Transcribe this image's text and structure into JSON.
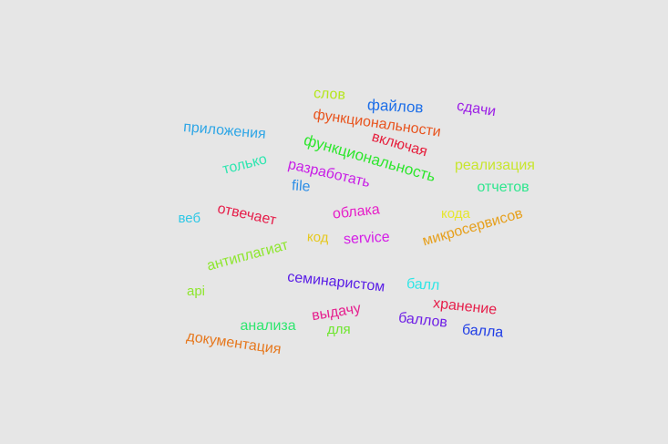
{
  "words": [
    {
      "text": "слов",
      "color": "#b5e61d"
    },
    {
      "text": "файлов",
      "color": "#1e6fe8"
    },
    {
      "text": "сдачи",
      "color": "#9b1de6"
    },
    {
      "text": "функциональности",
      "color": "#e8541e"
    },
    {
      "text": "приложения",
      "color": "#2ea6e6"
    },
    {
      "text": "функциональность",
      "color": "#2ee62e"
    },
    {
      "text": "включая",
      "color": "#e61e3c"
    },
    {
      "text": "только",
      "color": "#2ee6b0"
    },
    {
      "text": "разработать",
      "color": "#c81ee6"
    },
    {
      "text": "реализация",
      "color": "#c8e62e"
    },
    {
      "text": "file",
      "color": "#2e8ee6"
    },
    {
      "text": "отчетов",
      "color": "#2ee68e"
    },
    {
      "text": "отвечает",
      "color": "#e61e4a"
    },
    {
      "text": "облака",
      "color": "#e61ec8"
    },
    {
      "text": "кода",
      "color": "#e6e62e"
    },
    {
      "text": "веб",
      "color": "#2ec8e6"
    },
    {
      "text": "микросервисов",
      "color": "#e6a01e"
    },
    {
      "text": "код",
      "color": "#e6c81e"
    },
    {
      "text": "service",
      "color": "#d41ee6"
    },
    {
      "text": "антиплагиат",
      "color": "#8ee62e"
    },
    {
      "text": "семинаристом",
      "color": "#5a1ee6"
    },
    {
      "text": "балл",
      "color": "#2ee6e6"
    },
    {
      "text": "api",
      "color": "#8ee62e"
    },
    {
      "text": "хранение",
      "color": "#e61e4a"
    },
    {
      "text": "выдачу",
      "color": "#e61e8e"
    },
    {
      "text": "анализа",
      "color": "#2ee66e"
    },
    {
      "text": "баллов",
      "color": "#6e1ee6"
    },
    {
      "text": "балла",
      "color": "#1e3ce6"
    },
    {
      "text": "для",
      "color": "#6ee62e"
    },
    {
      "text": "документация",
      "color": "#e6781e"
    }
  ]
}
